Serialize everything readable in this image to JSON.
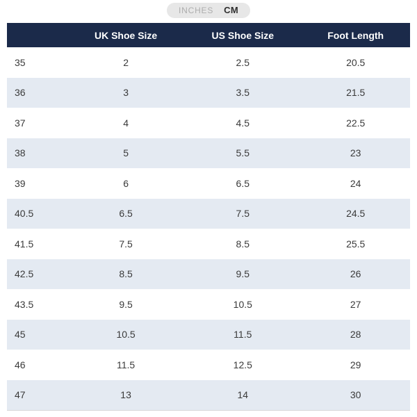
{
  "unit_toggle": {
    "options": [
      {
        "label": "INCHES",
        "selected": false
      },
      {
        "label": "CM",
        "selected": true
      }
    ]
  },
  "table": {
    "columns": [
      "",
      "UK Shoe Size",
      "US Shoe Size",
      "Foot Length"
    ],
    "rows": [
      [
        "35",
        "2",
        "2.5",
        "20.5"
      ],
      [
        "36",
        "3",
        "3.5",
        "21.5"
      ],
      [
        "37",
        "4",
        "4.5",
        "22.5"
      ],
      [
        "38",
        "5",
        "5.5",
        "23"
      ],
      [
        "39",
        "6",
        "6.5",
        "24"
      ],
      [
        "40.5",
        "6.5",
        "7.5",
        "24.5"
      ],
      [
        "41.5",
        "7.5",
        "8.5",
        "25.5"
      ],
      [
        "42.5",
        "8.5",
        "9.5",
        "26"
      ],
      [
        "43.5",
        "9.5",
        "10.5",
        "27"
      ],
      [
        "45",
        "10.5",
        "11.5",
        "28"
      ],
      [
        "46",
        "11.5",
        "12.5",
        "29"
      ],
      [
        "47",
        "13",
        "14",
        "30"
      ]
    ]
  },
  "colors": {
    "header_bg": "#1b2a4a",
    "header_text": "#ffffff",
    "row_alt_bg": "#e4eaf2",
    "cell_text": "#3a3a3a",
    "toggle_bg": "#e7e7e7",
    "toggle_inactive_text": "#adadad",
    "toggle_active_text": "#2e2e2e",
    "bottom_border": "#d8d8d8"
  }
}
